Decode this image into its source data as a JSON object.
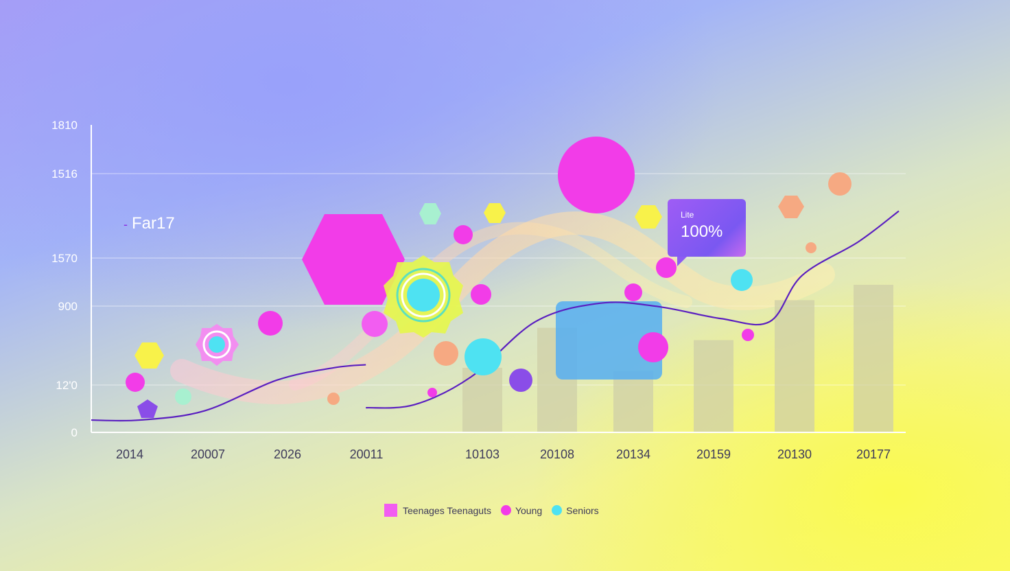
{
  "chart_data": {
    "type": "bar",
    "y_ticks": [
      "0",
      "12'0",
      "900",
      "1570",
      "1516",
      "1810"
    ],
    "x_ticks": [
      "2014",
      "20007",
      "2026",
      "20011",
      "10103",
      "20108",
      "20134",
      "20159",
      "20130",
      "20177"
    ],
    "bars": {
      "categories": [
        "10103",
        "20108",
        "20134",
        "20159",
        "20130",
        "20177"
      ],
      "values": [
        0.21,
        0.34,
        0.2,
        0.3,
        0.43,
        0.48
      ],
      "unit": "fraction of y-axis height"
    },
    "line_series": {
      "color": "#5a1fc0",
      "segment_1": {
        "x": [
          0,
          0.06,
          0.14,
          0.23,
          0.3,
          0.34
        ],
        "y": [
          0.04,
          0.04,
          0.07,
          0.17,
          0.21,
          0.22
        ]
      },
      "segment_2": {
        "x": [
          0.34,
          0.4,
          0.47,
          0.55,
          0.63,
          0.7,
          0.78,
          0.84,
          0.88,
          0.95,
          1.0
        ],
        "y": [
          0.08,
          0.09,
          0.18,
          0.36,
          0.42,
          0.41,
          0.37,
          0.36,
          0.51,
          0.62,
          0.72
        ]
      }
    },
    "annotation": "Far17",
    "callout": {
      "label": "Lite",
      "value": "100%"
    },
    "legend": [
      "Teenages Teenaguts",
      "Young",
      "Seniors"
    ],
    "colors": {
      "magenta": "#f23ce8",
      "pink": "#f25df1",
      "cyan": "#4ee2f2",
      "yellow": "#f8f24a",
      "peach": "#f6a982",
      "mint": "#a8f0d0",
      "violet": "#8a4de8",
      "blue_box": "#55aef2",
      "bar": "#cfcfa8"
    }
  }
}
